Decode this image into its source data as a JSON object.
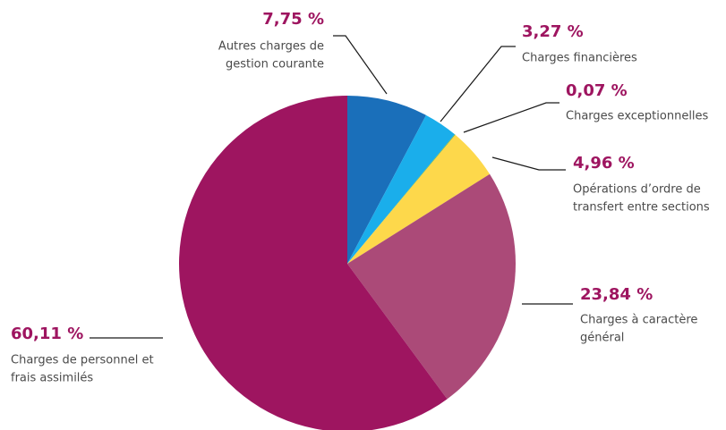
{
  "chart_data": {
    "type": "pie",
    "categories": [
      [
        "Autres charges de",
        "gestion courante"
      ],
      [
        "Charges financières"
      ],
      [
        "Charges exceptionnelles"
      ],
      [
        "Opérations d’ordre de",
        "transfert entre sections"
      ],
      [
        "Charges à caractère",
        "général"
      ],
      [
        "Charges de personnel et",
        "frais assimilés"
      ]
    ],
    "values": [
      7.75,
      3.27,
      0.07,
      4.96,
      23.84,
      60.11
    ],
    "value_labels": [
      "7,75 %",
      "3,27 %",
      "0,07 %",
      "4,96 %",
      "23,84 %",
      "60,11 %"
    ],
    "colors": [
      "#1a6fba",
      "#1aaeeb",
      "#7ab648",
      "#fdd84b",
      "#ab4a78",
      "#9e1560"
    ]
  }
}
